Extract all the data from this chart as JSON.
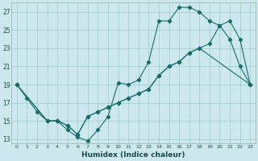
{
  "xlabel": "Humidex (Indice chaleur)",
  "bg_color": "#cce8ec",
  "grid_color": "#99cccc",
  "line_color": "#1a6b6b",
  "xmin": -0.5,
  "xmax": 23.5,
  "ymin": 12.5,
  "ymax": 28.0,
  "yticks": [
    13,
    15,
    17,
    19,
    21,
    23,
    25,
    27
  ],
  "xticks": [
    0,
    1,
    2,
    3,
    4,
    5,
    6,
    7,
    8,
    9,
    10,
    11,
    12,
    13,
    14,
    15,
    16,
    17,
    18,
    19,
    20,
    21,
    22,
    23
  ],
  "line1_x": [
    0,
    1,
    2,
    3,
    4,
    5,
    6,
    7,
    8,
    9,
    10,
    11,
    12,
    13,
    14,
    15,
    16,
    17,
    18,
    19,
    20,
    21,
    22,
    23
  ],
  "line1_y": [
    19,
    17.5,
    16,
    15,
    15,
    14,
    13.2,
    12.8,
    14,
    15.5,
    19.2,
    19.0,
    19.5,
    21.5,
    26.0,
    26.0,
    27.5,
    27.5,
    27.0,
    26.0,
    25.5,
    24.0,
    21.0,
    19.0
  ],
  "line2_x": [
    0,
    3,
    4,
    5,
    6,
    7,
    8,
    9,
    10,
    11,
    12,
    13,
    14,
    15,
    16,
    17,
    18,
    19,
    20,
    21,
    22,
    23
  ],
  "line2_y": [
    19,
    15,
    15,
    14.5,
    13.5,
    15.5,
    16,
    16.5,
    17,
    17.5,
    18,
    18.5,
    20,
    21,
    21.5,
    22.5,
    23,
    23.5,
    25.5,
    26.0,
    24.0,
    19.0
  ],
  "line3_x": [
    0,
    3,
    4,
    5,
    6,
    7,
    8,
    9,
    10,
    11,
    12,
    13,
    14,
    15,
    16,
    17,
    18,
    23
  ],
  "line3_y": [
    19,
    15,
    15,
    14.5,
    13.5,
    15.5,
    16,
    16.5,
    17,
    17.5,
    18,
    18.5,
    20,
    21,
    21.5,
    22.5,
    23,
    19.0
  ]
}
